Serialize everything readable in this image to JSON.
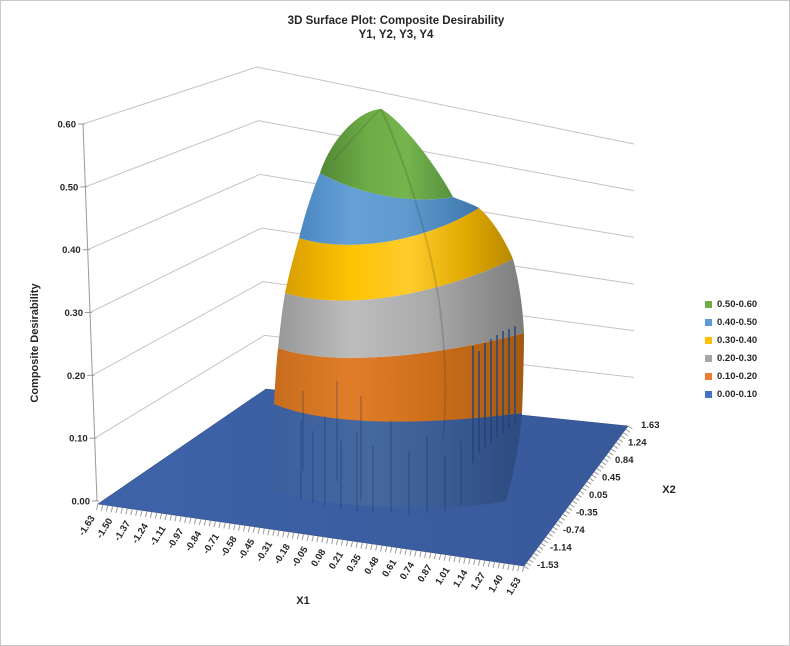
{
  "window": {
    "background": "#ffffff",
    "border_color": "#c9c9c9"
  },
  "chart": {
    "title_line1": "3D Surface Plot: Composite Desirability",
    "title_line2": "Y1, Y2, Y3, Y4",
    "z_axis": {
      "title": "Composite Desirability",
      "ticks": [
        "0.60",
        "0.50",
        "0.40",
        "0.30",
        "0.20",
        "0.10",
        "0.00"
      ]
    },
    "x1_axis": {
      "title": "X1",
      "ticks": [
        "-1.63",
        "-1.50",
        "-1.37",
        "-1.24",
        "-1.11",
        "-0.97",
        "-0.84",
        "-0.71",
        "-0.58",
        "-0.45",
        "-0.31",
        "-0.18",
        "-0.05",
        "0.08",
        "0.21",
        "0.35",
        "0.48",
        "0.61",
        "0.74",
        "0.87",
        "1.01",
        "1.14",
        "1.27",
        "1.40",
        "1.53"
      ]
    },
    "x2_axis": {
      "title": "X2",
      "ticks": [
        "1.63",
        "1.24",
        "0.84",
        "0.45",
        "0.05",
        "-0.35",
        "-0.74",
        "-1.14",
        "-1.53"
      ]
    },
    "legend": {
      "entries": [
        {
          "label": "0.50-0.60",
          "color": "#70AD47"
        },
        {
          "label": "0.40-0.50",
          "color": "#5B9BD5"
        },
        {
          "label": "0.30-0.40",
          "color": "#FFC000"
        },
        {
          "label": "0.20-0.30",
          "color": "#A5A5A5"
        },
        {
          "label": "0.10-0.20",
          "color": "#ED7D31"
        },
        {
          "label": "0.00-0.10",
          "color": "#4472C4"
        }
      ]
    }
  },
  "chart_data": {
    "type": "surface",
    "title": "3D Surface Plot: Composite Desirability",
    "subtitle": "Y1, Y2, Y3, Y4",
    "x1label": "X1",
    "x2label": "X2",
    "zlabel": "Composite Desirability",
    "zlim": [
      0.0,
      0.6
    ],
    "x1_ticks": [
      -1.63,
      -1.5,
      -1.37,
      -1.24,
      -1.11,
      -0.97,
      -0.84,
      -0.71,
      -0.58,
      -0.45,
      -0.31,
      -0.18,
      -0.05,
      0.08,
      0.21,
      0.35,
      0.48,
      0.61,
      0.74,
      0.87,
      1.01,
      1.14,
      1.27,
      1.4,
      1.53
    ],
    "x2_ticks": [
      -1.53,
      -1.14,
      -0.74,
      -0.35,
      0.05,
      0.45,
      0.84,
      1.24,
      1.63
    ],
    "bands": [
      {
        "range": [
          0.5,
          0.6
        ],
        "color": "#70AD47"
      },
      {
        "range": [
          0.4,
          0.5
        ],
        "color": "#5B9BD5"
      },
      {
        "range": [
          0.3,
          0.4
        ],
        "color": "#FFC000"
      },
      {
        "range": [
          0.2,
          0.3
        ],
        "color": "#A5A5A5"
      },
      {
        "range": [
          0.1,
          0.2
        ],
        "color": "#ED7D31"
      },
      {
        "range": [
          0.0,
          0.1
        ],
        "color": "#4472C4"
      }
    ],
    "surface_summary": {
      "shape": "single dome peaking near the center of the design space, composite desirability ~0 (flat floor) outside an elliptical region",
      "peak_value": 0.6,
      "floor_value": 0.0,
      "peak_location_approx": {
        "x1": 0.3,
        "x2": 0.1
      }
    },
    "estimated_grid": {
      "note": "values estimated from contour band colors",
      "x1": [
        -1.63,
        -1.11,
        -0.58,
        -0.05,
        0.48,
        1.01,
        1.53
      ],
      "x2": [
        -1.53,
        -0.74,
        -0.35,
        0.05,
        0.45,
        0.84,
        1.63
      ],
      "z": [
        [
          0,
          0,
          0,
          0,
          0,
          0,
          0
        ],
        [
          0,
          0,
          0.1,
          0.3,
          0.3,
          0.05,
          0
        ],
        [
          0,
          0.05,
          0.3,
          0.5,
          0.5,
          0.1,
          0
        ],
        [
          0,
          0.1,
          0.4,
          0.6,
          0.55,
          0.15,
          0
        ],
        [
          0,
          0.05,
          0.35,
          0.55,
          0.5,
          0.1,
          0
        ],
        [
          0,
          0,
          0.15,
          0.35,
          0.3,
          0.05,
          0
        ],
        [
          0,
          0,
          0,
          0,
          0,
          0,
          0
        ]
      ]
    },
    "legend_position": "right",
    "grid": true
  }
}
